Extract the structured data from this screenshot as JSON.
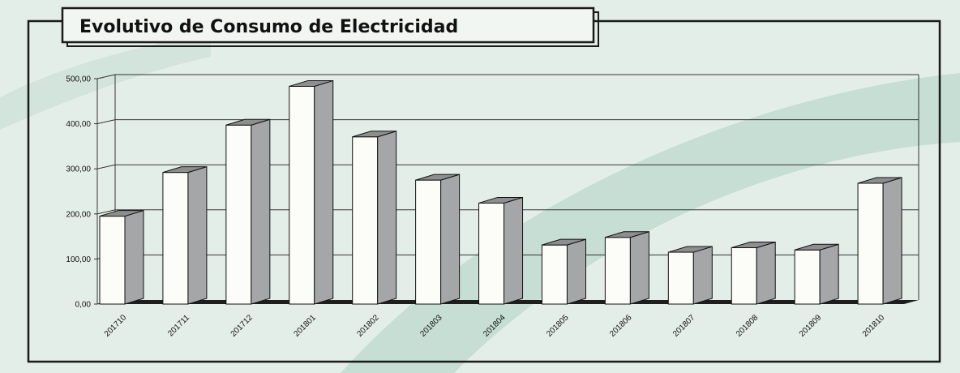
{
  "chart_data": {
    "type": "bar",
    "title": "Evolutivo de Consumo de Electricidad",
    "xlabel": "",
    "ylabel": "",
    "categories": [
      "201710",
      "201711",
      "201712",
      "201801",
      "201802",
      "201803",
      "201804",
      "201805",
      "201806",
      "201807",
      "201808",
      "201809",
      "201810"
    ],
    "values": [
      195,
      292,
      397,
      483,
      371,
      275,
      224,
      131,
      148,
      115,
      125,
      120,
      268
    ],
    "ylim": [
      0,
      500
    ],
    "yticks": [
      "0,00",
      "100,00",
      "200,00",
      "300,00",
      "400,00",
      "500,00"
    ],
    "grid": true,
    "legend": "none",
    "colors": {
      "bar_front": "#fcfcf8",
      "bar_side": "#a4a6a8",
      "bar_top": "#8c8e90",
      "floor": "#1e1e1e",
      "background": "#e4eee8",
      "band": "#bcd8cc"
    }
  }
}
